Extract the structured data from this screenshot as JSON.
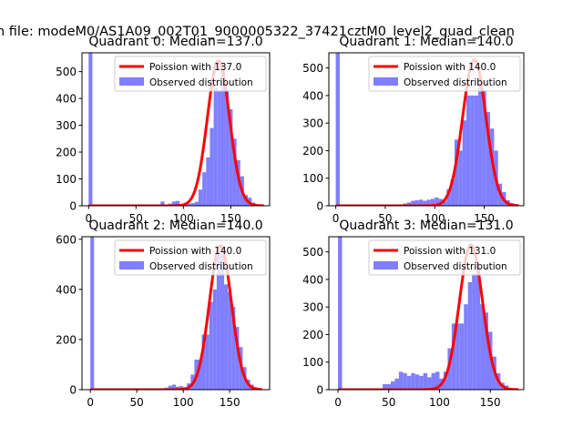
{
  "figure": {
    "suptitle": "n file: modeM0/AS1A09_002T01_9000005322_37421cztM0_level2_quad_clean"
  },
  "colors": {
    "hist": "#7f7fff",
    "poisson": "#ff0000",
    "axis": "#000000",
    "legend_border": "#cccccc"
  },
  "chart_data": [
    {
      "type": "bar",
      "title": "Quadrant 0: Median=137.0",
      "xlim": [
        -7,
        191
      ],
      "ylim": [
        0,
        570
      ],
      "xticks": [
        0,
        50,
        100,
        150
      ],
      "yticks": [
        0,
        100,
        200,
        300,
        400,
        500
      ],
      "xlabel": "",
      "ylabel": "",
      "legend": {
        "position": "upper right",
        "entries": [
          "Poission with 137.0",
          "Observed distribution"
        ]
      },
      "bin_width": 4.0,
      "histogram": [
        [
          0,
          600
        ],
        [
          4,
          4
        ],
        [
          64,
          4
        ],
        [
          68,
          4
        ],
        [
          72,
          4
        ],
        [
          76,
          16
        ],
        [
          80,
          3
        ],
        [
          84,
          8
        ],
        [
          88,
          16
        ],
        [
          92,
          18
        ],
        [
          96,
          1
        ],
        [
          100,
          3
        ],
        [
          104,
          8
        ],
        [
          108,
          10
        ],
        [
          112,
          15
        ],
        [
          116,
          60
        ],
        [
          120,
          125
        ],
        [
          124,
          180
        ],
        [
          128,
          290
        ],
        [
          132,
          440
        ],
        [
          136,
          430
        ],
        [
          140,
          510
        ],
        [
          144,
          430
        ],
        [
          148,
          360
        ],
        [
          152,
          250
        ],
        [
          156,
          170
        ],
        [
          160,
          110
        ],
        [
          164,
          40
        ],
        [
          168,
          30
        ],
        [
          172,
          12
        ],
        [
          176,
          5
        ],
        [
          180,
          2
        ]
      ],
      "poisson": {
        "mean": 137.0,
        "peak": 540,
        "x_range": [
          0,
          185
        ]
      }
    },
    {
      "type": "bar",
      "title": "Quadrant 1: Median=140.0",
      "xlim": [
        -7,
        190
      ],
      "ylim": [
        0,
        555
      ],
      "xticks": [
        0,
        50,
        100,
        150
      ],
      "yticks": [
        0,
        100,
        200,
        300,
        400,
        500
      ],
      "xlabel": "",
      "ylabel": "",
      "legend": {
        "position": "upper right",
        "entries": [
          "Poission with 140.0",
          "Observed distribution"
        ]
      },
      "bin_width": 4.0,
      "histogram": [
        [
          0,
          600
        ],
        [
          4,
          4
        ],
        [
          60,
          3
        ],
        [
          64,
          4
        ],
        [
          68,
          8
        ],
        [
          72,
          12
        ],
        [
          76,
          18
        ],
        [
          80,
          20
        ],
        [
          84,
          22
        ],
        [
          88,
          18
        ],
        [
          92,
          22
        ],
        [
          96,
          25
        ],
        [
          100,
          30
        ],
        [
          104,
          25
        ],
        [
          108,
          18
        ],
        [
          112,
          60
        ],
        [
          116,
          95
        ],
        [
          120,
          240
        ],
        [
          124,
          200
        ],
        [
          128,
          310
        ],
        [
          132,
          400
        ],
        [
          136,
          400
        ],
        [
          140,
          400
        ],
        [
          144,
          470
        ],
        [
          148,
          420
        ],
        [
          152,
          340
        ],
        [
          156,
          280
        ],
        [
          160,
          200
        ],
        [
          164,
          80
        ],
        [
          168,
          50
        ],
        [
          172,
          20
        ],
        [
          176,
          10
        ],
        [
          180,
          4
        ]
      ],
      "poisson": {
        "mean": 140.0,
        "peak": 530,
        "x_range": [
          0,
          185
        ]
      }
    },
    {
      "type": "bar",
      "title": "Quadrant 2: Median=140.0",
      "xlim": [
        -9,
        193
      ],
      "ylim": [
        0,
        610
      ],
      "xticks": [
        0,
        50,
        100,
        150
      ],
      "yticks": [
        0,
        200,
        400,
        600
      ],
      "xlabel": "",
      "ylabel": "",
      "legend": {
        "position": "upper right",
        "entries": [
          "Poission with 140.0",
          "Observed distribution"
        ]
      },
      "bin_width": 4.0,
      "histogram": [
        [
          0,
          700
        ],
        [
          4,
          3
        ],
        [
          76,
          4
        ],
        [
          80,
          8
        ],
        [
          84,
          16
        ],
        [
          88,
          20
        ],
        [
          92,
          12
        ],
        [
          96,
          14
        ],
        [
          100,
          10
        ],
        [
          104,
          25
        ],
        [
          108,
          60
        ],
        [
          112,
          120
        ],
        [
          116,
          120
        ],
        [
          120,
          220
        ],
        [
          124,
          220
        ],
        [
          128,
          350
        ],
        [
          132,
          400
        ],
        [
          136,
          550
        ],
        [
          140,
          540
        ],
        [
          144,
          420
        ],
        [
          148,
          390
        ],
        [
          152,
          330
        ],
        [
          156,
          250
        ],
        [
          160,
          170
        ],
        [
          164,
          90
        ],
        [
          168,
          40
        ],
        [
          172,
          20
        ],
        [
          176,
          10
        ],
        [
          180,
          5
        ]
      ],
      "poisson": {
        "mean": 140.0,
        "peak": 575,
        "x_range": [
          0,
          185
        ]
      }
    },
    {
      "type": "bar",
      "title": "Quadrant 3: Median=131.0",
      "xlim": [
        -9,
        183
      ],
      "ylim": [
        0,
        555
      ],
      "xticks": [
        0,
        50,
        100,
        150
      ],
      "yticks": [
        0,
        100,
        200,
        300,
        400,
        500
      ],
      "xlabel": "",
      "ylabel": "",
      "legend": {
        "position": "upper right",
        "entries": [
          "Poission with 131.0",
          "Observed distribution"
        ]
      },
      "bin_width": 4.0,
      "histogram": [
        [
          0,
          600
        ],
        [
          4,
          3
        ],
        [
          40,
          2
        ],
        [
          44,
          20
        ],
        [
          48,
          20
        ],
        [
          52,
          30
        ],
        [
          56,
          40
        ],
        [
          60,
          65
        ],
        [
          64,
          60
        ],
        [
          68,
          50
        ],
        [
          72,
          60
        ],
        [
          76,
          55
        ],
        [
          80,
          50
        ],
        [
          84,
          60
        ],
        [
          88,
          45
        ],
        [
          92,
          60
        ],
        [
          96,
          65
        ],
        [
          100,
          40
        ],
        [
          104,
          65
        ],
        [
          108,
          150
        ],
        [
          112,
          240
        ],
        [
          116,
          240
        ],
        [
          120,
          240
        ],
        [
          124,
          310
        ],
        [
          128,
          390
        ],
        [
          132,
          420
        ],
        [
          136,
          450
        ],
        [
          140,
          310
        ],
        [
          144,
          280
        ],
        [
          148,
          210
        ],
        [
          152,
          120
        ],
        [
          156,
          60
        ],
        [
          160,
          25
        ],
        [
          164,
          15
        ],
        [
          168,
          5
        ]
      ],
      "poisson": {
        "mean": 131.0,
        "peak": 525,
        "x_range": [
          0,
          178
        ]
      }
    }
  ]
}
